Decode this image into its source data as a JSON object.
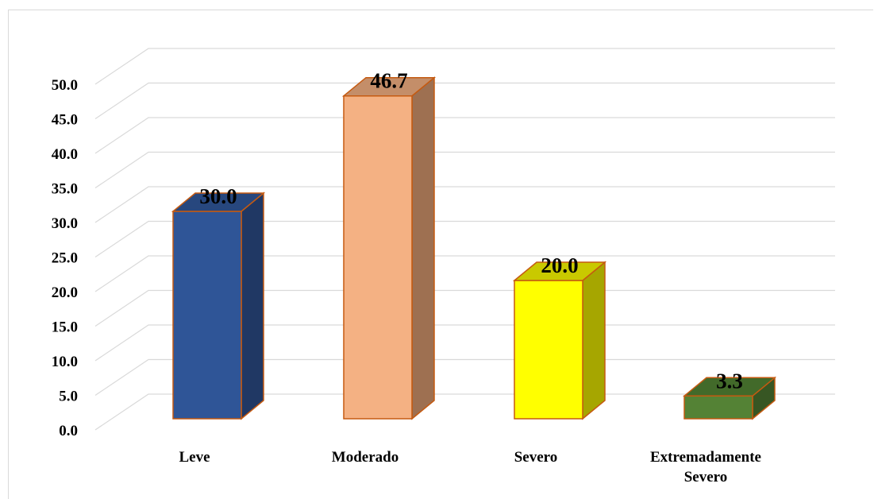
{
  "chart_data": {
    "type": "bar",
    "categories": [
      "Leve",
      "Moderado",
      "Severo",
      "Extremadamente Severo"
    ],
    "category_lines": [
      [
        "Leve"
      ],
      [
        "Moderado"
      ],
      [
        "Severo"
      ],
      [
        "Extremadamente",
        "Severo"
      ]
    ],
    "values": [
      30.0,
      46.7,
      20.0,
      3.3
    ],
    "data_labels": [
      "30.0",
      "46.7",
      "20.0",
      "3.3"
    ],
    "yticks": [
      "0.0",
      "5.0",
      "10.0",
      "15.0",
      "20.0",
      "25.0",
      "30.0",
      "35.0",
      "40.0",
      "45.0",
      "50.0"
    ],
    "ylim": [
      0,
      50
    ],
    "grid": true,
    "legend": "none",
    "style": "3d-column",
    "colors": {
      "front": [
        "#2f5597",
        "#f4b183",
        "#ffff00",
        "#548235"
      ],
      "side": [
        "#203864",
        "#9e7051",
        "#a6a600",
        "#375623"
      ],
      "top": [
        "#27477e",
        "#c48e69",
        "#c9c900",
        "#426a2a"
      ],
      "outline": "#c55a11",
      "grid": "#d9d9d9"
    },
    "title": "",
    "xlabel": "",
    "ylabel": ""
  }
}
